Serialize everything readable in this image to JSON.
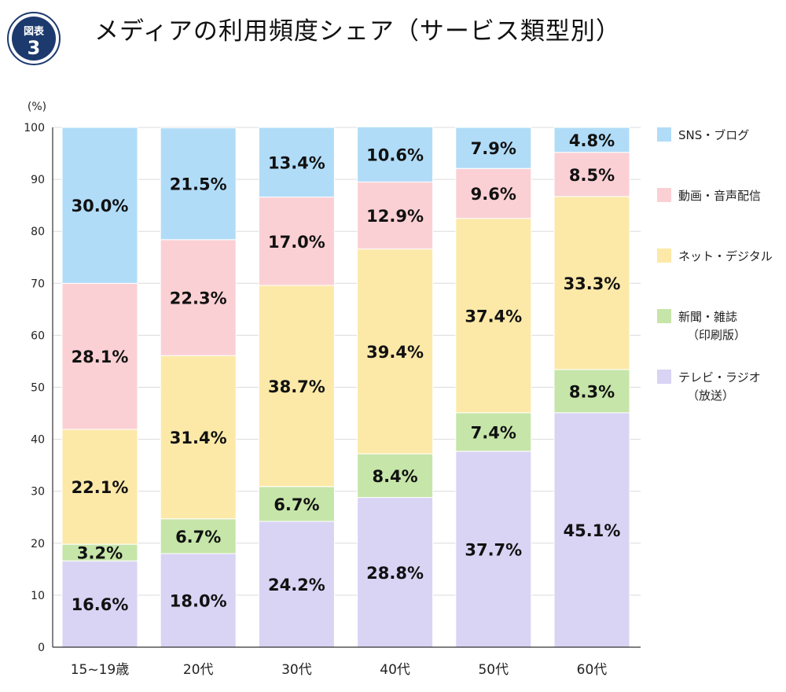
{
  "badge": {
    "label": "図表",
    "number": "3",
    "color": "#1c3a6e"
  },
  "title": "メディアの利用頻度シェア（サービス類型別）",
  "chart_data": {
    "type": "bar",
    "stacked": true,
    "title": "メディアの利用頻度シェア（サービス類型別）",
    "ylabel": "(%)",
    "xlabel": "",
    "ylim": [
      0,
      100
    ],
    "yticks": [
      0,
      10,
      20,
      30,
      40,
      50,
      60,
      70,
      80,
      90,
      100
    ],
    "grid": true,
    "legend_position": "right",
    "categories": [
      "15~19歳",
      "20代",
      "30代",
      "40代",
      "50代",
      "60代"
    ],
    "series": [
      {
        "name": "テレビ・ラジオ（放送）",
        "legend": [
          "テレビ・ラジオ",
          "（放送）"
        ],
        "color": "#d9d3f4",
        "values": [
          16.6,
          18.0,
          24.2,
          28.8,
          37.7,
          45.1
        ],
        "labels": [
          "16.6%",
          "18.0%",
          "24.2%",
          "28.8%",
          "37.7%",
          "45.1%"
        ]
      },
      {
        "name": "新聞・雑誌（印刷版）",
        "legend": [
          "新聞・雑誌",
          "（印刷版）"
        ],
        "color": "#c6e5a9",
        "values": [
          3.2,
          6.7,
          6.7,
          8.4,
          7.4,
          8.3
        ],
        "labels": [
          "3.2%",
          "6.7%",
          "6.7%",
          "8.4%",
          "7.4%",
          "8.3%"
        ]
      },
      {
        "name": "ネット・デジタル",
        "legend": [
          "ネット・デジタル"
        ],
        "color": "#fce9a8",
        "values": [
          22.1,
          31.4,
          38.7,
          39.4,
          37.4,
          33.3
        ],
        "labels": [
          "22.1%",
          "31.4%",
          "38.7%",
          "39.4%",
          "37.4%",
          "33.3%"
        ]
      },
      {
        "name": "動画・音声配信",
        "legend": [
          "動画・音声配信"
        ],
        "color": "#fbd0d4",
        "values": [
          28.1,
          22.3,
          17.0,
          12.9,
          9.6,
          8.5
        ],
        "labels": [
          "28.1%",
          "22.3%",
          "17.0%",
          "12.9%",
          "9.6%",
          "8.5%"
        ]
      },
      {
        "name": "SNS・ブログ",
        "legend": [
          "SNS・ブログ"
        ],
        "color": "#b1dcf8",
        "values": [
          30.0,
          21.5,
          13.4,
          10.6,
          7.9,
          4.8
        ],
        "labels": [
          "30.0%",
          "21.5%",
          "13.4%",
          "10.6%",
          "7.9%",
          "4.8%"
        ]
      }
    ]
  }
}
